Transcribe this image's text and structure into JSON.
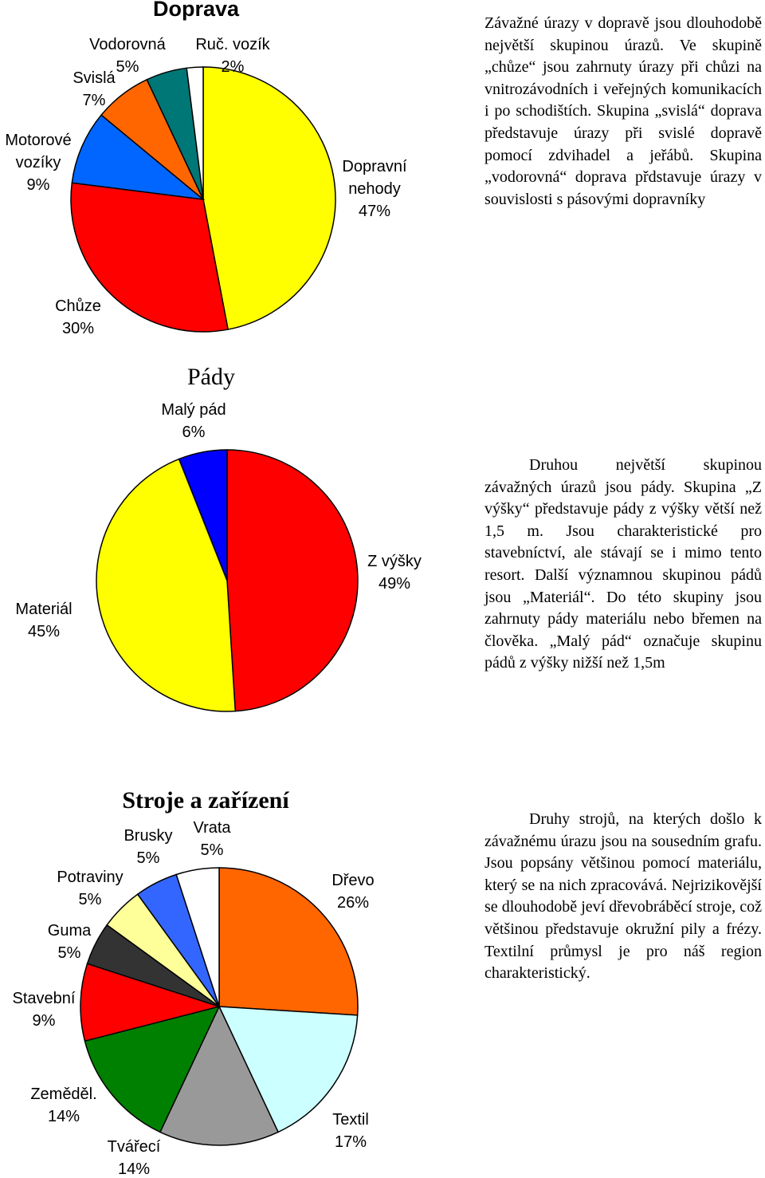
{
  "chart_data": [
    {
      "type": "pie",
      "title": "Doprava",
      "categories": [
        "Dopravní nehody",
        "Chůze",
        "Motorové vozíky",
        "Svislá",
        "Vodorovná",
        "Ruč. vozík"
      ],
      "values": [
        47,
        30,
        9,
        7,
        5,
        2
      ],
      "value_labels": [
        "47%",
        "30%",
        "9%",
        "7%",
        "5%",
        "2%"
      ],
      "colors": [
        "#ffff00",
        "#ff0000",
        "#0066ff",
        "#ff6600",
        "#007777",
        "#ffffff"
      ]
    },
    {
      "type": "pie",
      "title": "Pády",
      "categories": [
        "Z výšky",
        "Materiál",
        "Malý pád"
      ],
      "values": [
        49,
        45,
        6
      ],
      "value_labels": [
        "49%",
        "45%",
        "6%"
      ],
      "colors": [
        "#ff0000",
        "#ffff00",
        "#0000ff"
      ]
    },
    {
      "type": "pie",
      "title": "Stroje a zařízení",
      "categories": [
        "Dřevo",
        "Textil",
        "Tvářecí",
        "Zeměděl.",
        "Stavební",
        "Guma",
        "Potraviny",
        "Brusky",
        "Vrata"
      ],
      "values": [
        26,
        17,
        14,
        14,
        9,
        5,
        5,
        5,
        5
      ],
      "value_labels": [
        "26%",
        "17%",
        "14%",
        "14%",
        "9%",
        "5%",
        "5%",
        "5%",
        "5%"
      ],
      "colors": [
        "#ff6600",
        "#ccffff",
        "#999999",
        "#008000",
        "#ff0000",
        "#333333",
        "#ffff99",
        "#3366ff",
        "#ffffff"
      ]
    }
  ],
  "paragraphs": [
    "Závažné úrazy v dopravě jsou dlouhodobě největší skupinou úrazů. Ve skupině „chůze“ jsou zahrnuty úrazy při chůzi na vnitrozávodních i veřejných komunikacích i po schodištích. Skupina „svislá“ doprava představuje úrazy při svislé dopravě pomocí zdvihadel a jeřábů. Skupina „vodorovná“ doprava přdstavuje úrazy v souvislosti s pásovými dopravníky",
    "Druhou největší skupinou závažných úrazů jsou pády. Skupina „Z výšky“ představuje pády z výšky větší než 1,5 m. Jsou charakteristické pro stavebníctví, ale stávají se i mimo tento resort. Další významnou skupinou pádů jsou „Materiál“. Do této skupiny jsou zahrnuty pády materiálu nebo břemen na člověka. „Malý pád“ označuje skupinu pádů z výšky nižší než 1,5m",
    "Druhy strojů, na kterých došlo k závažnému úrazu jsou na sousedním grafu. Jsou popsány většinou pomocí materiálu, který se na nich zpracovává. Nejrizikovější se dlouhodobě jeví dřevobráběcí stroje, což většinou představuje okružní pily a frézy. Textilní průmysl je pro náš region charakteristický."
  ]
}
